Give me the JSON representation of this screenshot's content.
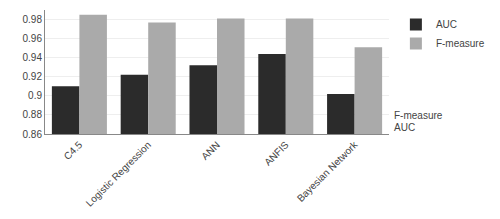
{
  "chart_data": {
    "type": "bar",
    "categories": [
      "C4.5",
      "Logistic Regression",
      "ANN",
      "ANFIS",
      "Bayesian Network"
    ],
    "series": [
      {
        "name": "AUC",
        "color": "#2b2b2b",
        "values": [
          0.91,
          0.922,
          0.932,
          0.944,
          0.902
        ]
      },
      {
        "name": "F-measure",
        "color": "#aaaaaa",
        "values": [
          0.985,
          0.977,
          0.981,
          0.981,
          0.951
        ]
      }
    ],
    "ylim": [
      0.86,
      0.99
    ],
    "yticks": [
      0.86,
      0.88,
      0.9,
      0.92,
      0.94,
      0.96,
      0.98
    ],
    "grid": true,
    "legend": "upper right",
    "annotations": [
      "F-measure",
      "AUC"
    ]
  }
}
